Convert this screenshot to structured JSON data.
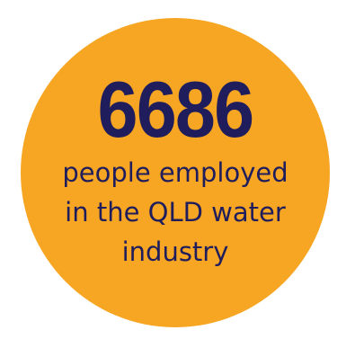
{
  "stat": {
    "number": "6686",
    "caption_lines": [
      "people employed",
      "in the QLD water",
      "industry"
    ]
  },
  "colors": {
    "circle_fill": "#F6A623",
    "number_text": "#1F1D5C",
    "caption_text": "#1F1D5C"
  }
}
